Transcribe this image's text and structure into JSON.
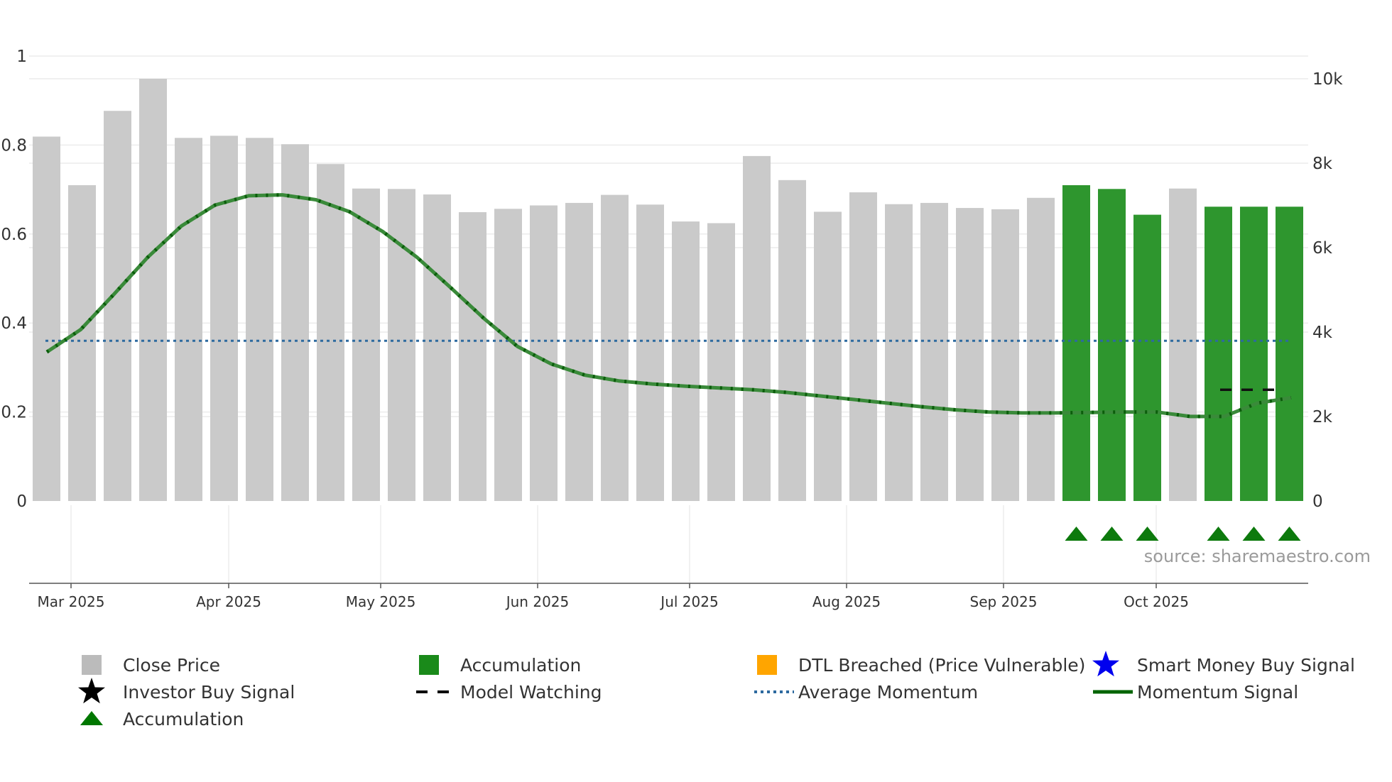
{
  "chart_data": {
    "type": "bar+line",
    "source_text": "source: sharemaestro.com",
    "x_tick_labels": [
      "Mar 2025",
      "Apr 2025",
      "May 2025",
      "Jun 2025",
      "Jul 2025",
      "Aug 2025",
      "Sep 2025",
      "Oct 2025"
    ],
    "left_axis": {
      "range": [
        0,
        1
      ],
      "ticks": [
        0,
        0.2,
        0.4,
        0.6,
        0.8,
        1
      ],
      "tick_labels": [
        "0",
        "0.2",
        "0.4",
        "0.6",
        "0.8",
        "1"
      ]
    },
    "right_axis": {
      "range": [
        0,
        10000
      ],
      "ticks": [
        0,
        2000,
        4000,
        6000,
        8000,
        10000
      ],
      "tick_labels": [
        "0",
        "2k",
        "4k",
        "6k",
        "8k",
        "10k"
      ]
    },
    "bars": {
      "name": "Close Price",
      "values": [
        8630,
        7480,
        9240,
        10000,
        8600,
        8650,
        8600,
        8450,
        7980,
        7400,
        7390,
        7260,
        6840,
        6920,
        7000,
        7060,
        7250,
        7020,
        6620,
        6580,
        8170,
        7600,
        6850,
        7310,
        7030,
        7060,
        6940,
        6910,
        7180,
        7480,
        7390,
        6780,
        7400,
        6970,
        6970,
        6970
      ],
      "accumulation_flags": [
        false,
        false,
        false,
        false,
        false,
        false,
        false,
        false,
        false,
        false,
        false,
        false,
        false,
        false,
        false,
        false,
        false,
        false,
        false,
        false,
        false,
        false,
        false,
        false,
        false,
        false,
        false,
        false,
        false,
        true,
        true,
        true,
        false,
        true,
        true,
        true
      ]
    },
    "momentum_signal": {
      "name": "Momentum Signal",
      "values": [
        0.335,
        0.385,
        0.465,
        0.548,
        0.618,
        0.665,
        0.686,
        0.688,
        0.677,
        0.65,
        0.605,
        0.548,
        0.48,
        0.41,
        0.347,
        0.308,
        0.283,
        0.27,
        0.263,
        0.258,
        0.254,
        0.25,
        0.244,
        0.236,
        0.228,
        0.22,
        0.212,
        0.205,
        0.2,
        0.198,
        0.198,
        0.199,
        0.2,
        0.2,
        0.19,
        0.19,
        0.22,
        0.232
      ]
    },
    "average_momentum": {
      "name": "Average Momentum",
      "value": 0.36
    },
    "model_watching": {
      "name": "Model Watching",
      "value": 0.25
    },
    "accumulation_marker_indices": [
      29,
      30,
      31,
      33,
      34,
      35
    ],
    "legend": [
      {
        "key": "close_price",
        "label": "Close Price",
        "color": "#bbbbbb"
      },
      {
        "key": "accumulation_bar",
        "label": "Accumulation",
        "color": "#1a8a1a"
      },
      {
        "key": "dtl_breached",
        "label": "DTL Breached (Price Vulnerable)",
        "color": "#ffa500"
      },
      {
        "key": "smart_money",
        "label": "Smart Money Buy Signal",
        "color": "#0000ee"
      },
      {
        "key": "investor_buy",
        "label": "Investor Buy Signal",
        "color": "#000000"
      },
      {
        "key": "model_watching",
        "label": "Model Watching",
        "color": "#000000"
      },
      {
        "key": "average_momentum",
        "label": "Average Momentum",
        "color": "#2d6a9f"
      },
      {
        "key": "momentum_signal",
        "label": "Momentum Signal",
        "color": "#006400"
      },
      {
        "key": "accumulation_marker",
        "label": "Accumulation",
        "color": "#007700"
      }
    ]
  }
}
